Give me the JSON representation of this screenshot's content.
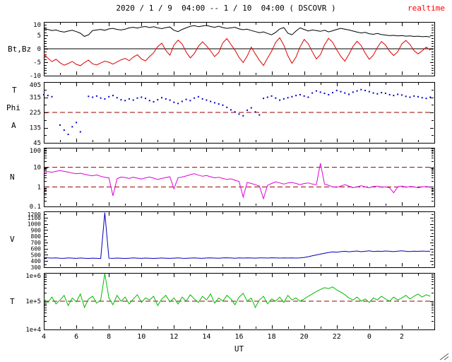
{
  "header": {
    "title": "2020 / 1 / 9  04:00 -- 1 / 10  04:00 ( DSCOVR )",
    "realtime_label": "realtime"
  },
  "axis": {
    "x_label": "UT",
    "x_min": 4,
    "x_max": 28,
    "x_ticks": [
      {
        "v": 4,
        "label": "4"
      },
      {
        "v": 6,
        "label": "6"
      },
      {
        "v": 8,
        "label": "8"
      },
      {
        "v": 10,
        "label": "10"
      },
      {
        "v": 12,
        "label": "12"
      },
      {
        "v": 14,
        "label": "14"
      },
      {
        "v": 16,
        "label": "16"
      },
      {
        "v": 18,
        "label": "18"
      },
      {
        "v": 20,
        "label": "20"
      },
      {
        "v": 22,
        "label": "22"
      },
      {
        "v": 24,
        "label": "0"
      },
      {
        "v": 26,
        "label": "2"
      },
      {
        "v": 28,
        "label": ""
      }
    ],
    "x_minor": [
      5,
      7,
      9,
      11,
      13,
      15,
      17,
      19,
      21,
      23,
      25,
      27
    ]
  },
  "colors": {
    "bt": "#000000",
    "bz": "#dd0000",
    "phi": "#0000cc",
    "density": "#dd00dd",
    "speed": "#0000bb",
    "temperature": "#00bb00",
    "dashed_line": "#990000",
    "realtime": "#ff0000"
  },
  "chart_data": [
    {
      "id": "bt_bz",
      "type": "line",
      "label": "Bt,Bz",
      "top": 31,
      "height": 76,
      "y_scale": "linear",
      "y_min": -10,
      "y_max": 10,
      "y_ticks": [
        {
          "v": 10,
          "label": "10"
        },
        {
          "v": 5,
          "label": "5"
        },
        {
          "v": 0,
          "label": "0"
        },
        {
          "v": -5,
          "label": "-5"
        },
        {
          "v": -10,
          "label": "-10"
        }
      ],
      "y_minor": [
        -9,
        -8,
        -7,
        -6,
        -4,
        -3,
        -2,
        -1,
        1,
        2,
        3,
        4,
        6,
        7,
        8,
        9
      ],
      "hlines": [
        {
          "v": 0,
          "color": "#000000",
          "dashed": false
        }
      ],
      "show_x_labels": false,
      "series": [
        {
          "name": "Bt",
          "color": "#000000",
          "type": "line",
          "x_start": 4,
          "x_step": 0.25,
          "values": [
            7.5,
            7.2,
            6.8,
            7.0,
            6.5,
            6.2,
            6.6,
            6.9,
            6.4,
            5.8,
            4.6,
            5.2,
            6.8,
            7.0,
            7.2,
            6.9,
            7.4,
            7.6,
            7.2,
            7.0,
            7.3,
            7.8,
            8.0,
            7.7,
            8.1,
            8.3,
            7.9,
            8.2,
            7.8,
            7.5,
            7.9,
            8.1,
            6.9,
            6.4,
            7.2,
            7.8,
            8.4,
            8.6,
            8.2,
            8.5,
            8.7,
            8.3,
            8.0,
            8.4,
            7.9,
            7.6,
            7.8,
            8.0,
            7.4,
            7.1,
            7.3,
            6.8,
            6.4,
            6.0,
            6.3,
            5.7,
            5.2,
            6.1,
            7.4,
            7.9,
            5.8,
            5.2,
            6.6,
            7.8,
            7.2,
            6.6,
            7.0,
            6.8,
            6.5,
            6.9,
            6.3,
            6.7,
            7.2,
            7.6,
            7.3,
            7.0,
            6.6,
            6.2,
            5.9,
            6.1,
            5.6,
            5.4,
            5.7,
            5.3,
            5.1,
            4.9,
            5.0,
            4.8,
            4.9,
            4.7,
            4.8,
            4.6,
            4.7,
            4.5,
            4.6,
            4.4
          ]
        },
        {
          "name": "Bz",
          "color": "#dd0000",
          "type": "line",
          "x_start": 4,
          "x_step": 0.25,
          "values": [
            -2.0,
            -3.5,
            -4.8,
            -3.9,
            -5.2,
            -6.1,
            -5.5,
            -4.7,
            -5.8,
            -6.3,
            -5.1,
            -4.2,
            -5.6,
            -6.0,
            -5.3,
            -4.6,
            -5.0,
            -5.7,
            -4.9,
            -4.1,
            -3.6,
            -4.4,
            -3.1,
            -2.2,
            -3.8,
            -4.5,
            -2.9,
            -1.5,
            0.8,
            2.1,
            -0.6,
            -2.4,
            1.4,
            3.2,
            1.8,
            -1.2,
            -3.4,
            -1.8,
            0.9,
            2.6,
            1.1,
            -0.8,
            -2.9,
            -1.4,
            2.2,
            3.8,
            1.6,
            -0.5,
            -3.2,
            -5.1,
            -2.7,
            0.6,
            -1.9,
            -4.3,
            -6.2,
            -3.5,
            -0.9,
            2.4,
            4.1,
            1.3,
            -2.6,
            -5.4,
            -3.1,
            0.7,
            3.5,
            1.9,
            -1.1,
            -3.8,
            -2.2,
            1.5,
            3.9,
            2.4,
            -0.4,
            -2.8,
            -4.6,
            -2.1,
            0.9,
            2.8,
            1.2,
            -1.6,
            -3.9,
            -2.4,
            0.5,
            2.7,
            1.4,
            -0.9,
            -2.5,
            -1.1,
            1.8,
            3.1,
            1.6,
            -0.7,
            -1.9,
            -0.8,
            0.6,
            -0.5
          ]
        }
      ]
    },
    {
      "id": "phi",
      "type": "scatter",
      "label_top": "T",
      "label": "Phi",
      "label_bottom": "A",
      "top": 116,
      "height": 86,
      "y_scale": "linear",
      "y_min": 45,
      "y_max": 405,
      "y_ticks": [
        {
          "v": 405,
          "label": "405"
        },
        {
          "v": 315,
          "label": "315"
        },
        {
          "v": 225,
          "label": "225"
        },
        {
          "v": 135,
          "label": "135"
        },
        {
          "v": 45,
          "label": "45"
        }
      ],
      "y_minor": [
        90,
        180,
        270,
        360
      ],
      "hlines": [
        {
          "v": 225,
          "color": "#990000",
          "dashed": true
        }
      ],
      "show_x_labels": false,
      "series": [
        {
          "name": "Phi",
          "color": "#0000cc",
          "type": "scatter",
          "x_start": 4,
          "x_step": 0.25,
          "values": [
            330,
            325,
            318,
            null,
            150,
            120,
            95,
            140,
            165,
            110,
            null,
            320,
            315,
            322,
            310,
            305,
            318,
            325,
            312,
            300,
            295,
            305,
            298,
            310,
            315,
            308,
            295,
            288,
            300,
            312,
            305,
            298,
            285,
            278,
            290,
            302,
            295,
            310,
            318,
            305,
            298,
            290,
            282,
            275,
            268,
            255,
            240,
            228,
            215,
            205,
            238,
            252,
            228,
            210,
            308,
            315,
            322,
            310,
            298,
            305,
            312,
            318,
            325,
            330,
            322,
            315,
            340,
            352,
            345,
            338,
            330,
            342,
            355,
            348,
            340,
            332,
            345,
            352,
            360,
            355,
            348,
            340,
            335,
            342,
            338,
            330,
            325,
            332,
            328,
            320,
            315,
            322,
            318,
            312,
            308,
            315
          ]
        }
      ]
    },
    {
      "id": "density",
      "type": "line",
      "label": "N",
      "top": 209,
      "height": 83,
      "y_scale": "log",
      "y_min": 0.1,
      "y_max": 100,
      "y_ticks": [
        {
          "v": 100,
          "label": "100"
        },
        {
          "v": 10,
          "label": "10"
        },
        {
          "v": 1,
          "label": "1"
        },
        {
          "v": 0.1,
          "label": "0.1"
        }
      ],
      "y_minor": [],
      "hlines": [
        {
          "v": 10,
          "color": "#990000",
          "dashed": true
        },
        {
          "v": 1,
          "color": "#990000",
          "dashed": true
        }
      ],
      "show_x_labels": false,
      "series": [
        {
          "name": "N",
          "color": "#dd00dd",
          "type": "line",
          "x_start": 4,
          "x_step": 0.25,
          "values": [
            5.5,
            6.0,
            5.6,
            6.3,
            6.8,
            6.2,
            5.7,
            5.1,
            4.7,
            5.0,
            4.4,
            4.0,
            3.7,
            4.1,
            3.5,
            3.1,
            2.9,
            0.35,
            2.6,
            3.2,
            3.0,
            2.7,
            3.1,
            2.8,
            2.5,
            2.9,
            3.2,
            2.8,
            2.4,
            2.7,
            3.0,
            3.3,
            0.8,
            2.9,
            3.2,
            3.6,
            4.2,
            4.7,
            4.0,
            3.5,
            3.8,
            3.3,
            2.9,
            3.1,
            2.7,
            2.4,
            2.6,
            2.2,
            1.9,
            0.3,
            1.7,
            1.5,
            1.3,
            1.1,
            0.25,
            1.2,
            1.5,
            1.8,
            1.6,
            1.4,
            1.6,
            1.7,
            1.5,
            1.3,
            1.5,
            1.6,
            1.4,
            1.3,
            16.0,
            1.4,
            1.2,
            1.0,
            0.95,
            1.1,
            1.3,
            1.1,
            0.9,
            1.0,
            1.15,
            1.0,
            0.9,
            1.05,
            1.1,
            0.95,
            1.0,
            0.9,
            0.5,
            1.0,
            1.1,
            0.95,
            1.05,
            1.0,
            0.9,
            1.0,
            1.05,
            0.95
          ]
        }
      ]
    },
    {
      "id": "speed",
      "type": "line",
      "label": "V",
      "top": 299,
      "height": 79,
      "y_scale": "linear",
      "y_min": 300,
      "y_max": 1200,
      "tick_font": 8,
      "y_ticks": [
        {
          "v": 1200,
          "label": "1200"
        },
        {
          "v": 1100,
          "label": "1100"
        },
        {
          "v": 1000,
          "label": "1000"
        },
        {
          "v": 900,
          "label": "900"
        },
        {
          "v": 800,
          "label": "800"
        },
        {
          "v": 700,
          "label": "700"
        },
        {
          "v": 600,
          "label": "600"
        },
        {
          "v": 500,
          "label": "500"
        },
        {
          "v": 400,
          "label": "400"
        },
        {
          "v": 300,
          "label": "300"
        }
      ],
      "y_minor": [
        350,
        450,
        550,
        650,
        750,
        850,
        950,
        1050,
        1150
      ],
      "hlines": [],
      "show_x_labels": false,
      "series": [
        {
          "name": "V",
          "color": "#0000bb",
          "type": "line",
          "x_start": 4,
          "x_step": 0.25,
          "values": [
            455,
            450,
            448,
            452,
            446,
            444,
            450,
            447,
            443,
            449,
            445,
            442,
            447,
            444,
            441,
            1180,
            446,
            443,
            448,
            445,
            442,
            446,
            450,
            447,
            444,
            448,
            445,
            442,
            446,
            449,
            446,
            443,
            447,
            450,
            446,
            443,
            448,
            451,
            447,
            444,
            449,
            452,
            448,
            445,
            450,
            453,
            449,
            446,
            451,
            448,
            452,
            449,
            447,
            452,
            450,
            448,
            453,
            450,
            448,
            452,
            449,
            451,
            448,
            450,
            458,
            470,
            484,
            498,
            512,
            526,
            538,
            548,
            543,
            552,
            558,
            549,
            556,
            562,
            551,
            558,
            564,
            553,
            560,
            556,
            562,
            557,
            552,
            559,
            564,
            558,
            554,
            559,
            556,
            561,
            557,
            560
          ]
        }
      ]
    },
    {
      "id": "temperature",
      "type": "line",
      "label": "T",
      "top": 386,
      "height": 80,
      "y_scale": "log",
      "y_min": 10000,
      "y_max": 1000000,
      "y_ticks": [
        {
          "v": 1000000,
          "label": "1e+6"
        },
        {
          "v": 100000,
          "label": "1e+5"
        },
        {
          "v": 10000,
          "label": "1e+4"
        }
      ],
      "y_minor": [],
      "hlines": [
        {
          "v": 100000,
          "color": "#990000",
          "dashed": true
        }
      ],
      "show_x_labels": true,
      "series": [
        {
          "name": "T",
          "color": "#00bb00",
          "type": "line",
          "x_start": 4,
          "x_step": 0.25,
          "values": [
            120000.0,
            90000.0,
            140000.0,
            80000.0,
            110000.0,
            160000.0,
            70000.0,
            130000.0,
            95000.0,
            180000.0,
            60000.0,
            120000.0,
            150000.0,
            85000.0,
            110000.0,
            950000.0,
            130000.0,
            75000.0,
            160000.0,
            100000.0,
            140000.0,
            80000.0,
            120000.0,
            170000.0,
            90000.0,
            130000.0,
            110000.0,
            150000.0,
            70000.0,
            120000.0,
            160000.0,
            95000.0,
            130000.0,
            80000.0,
            140000.0,
            100000.0,
            170000.0,
            120000.0,
            90000.0,
            150000.0,
            110000.0,
            180000.0,
            85000.0,
            130000.0,
            100000.0,
            160000.0,
            120000.0,
            75000.0,
            140000.0,
            190000.0,
            100000.0,
            130000.0,
            60000.0,
            110000.0,
            150000.0,
            80000.0,
            120000.0,
            100000.0,
            140000.0,
            90000.0,
            160000.0,
            110000.0,
            130000.0,
            100000.0,
            120000.0,
            150000.0,
            180000.0,
            220000.0,
            260000.0,
            300000.0,
            280000.0,
            320000.0,
            250000.0,
            210000.0,
            170000.0,
            130000.0,
            110000.0,
            140000.0,
            100000.0,
            120000.0,
            90000.0,
            130000.0,
            110000.0,
            150000.0,
            120000.0,
            100000.0,
            140000.0,
            110000.0,
            130000.0,
            160000.0,
            120000.0,
            150000.0,
            180000.0,
            140000.0,
            170000.0,
            150000.0
          ]
        }
      ]
    }
  ]
}
